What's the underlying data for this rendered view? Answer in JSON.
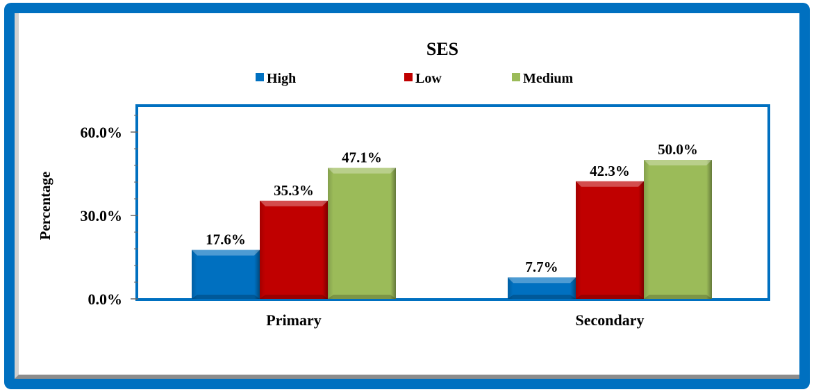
{
  "chart_data": {
    "type": "bar",
    "title": "SES",
    "xlabel": "",
    "ylabel": "Percentage",
    "categories": [
      "Primary",
      "Secondary"
    ],
    "series": [
      {
        "name": "High",
        "values": [
          17.6,
          7.7
        ],
        "color": "#0070c0"
      },
      {
        "name": "Low",
        "values": [
          35.3,
          42.3
        ],
        "color": "#c00000"
      },
      {
        "name": "Medium",
        "values": [
          47.1,
          50.0
        ],
        "color": "#9bbb59"
      }
    ],
    "data_labels": [
      [
        "17.6%",
        "7.7%"
      ],
      [
        "35.3%",
        "42.3%"
      ],
      [
        "47.1%",
        "50.0%"
      ]
    ],
    "yticks": [
      "0.0%",
      "30.0%",
      "60.0%"
    ],
    "ylim": [
      0,
      70
    ],
    "legend_position": "top",
    "grid": false,
    "frame_color": "#0070c0"
  }
}
